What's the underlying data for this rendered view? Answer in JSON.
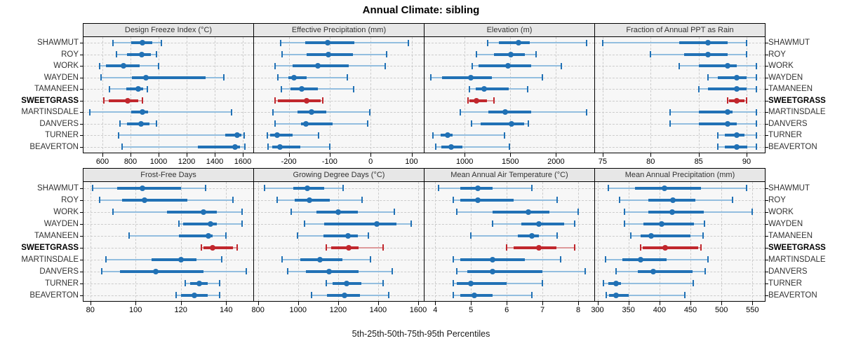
{
  "title": "Annual Climate: sibling",
  "caption": "5th-25th-50th-75th-95th Percentiles",
  "locations": [
    "SHAWMUT",
    "ROY",
    "WORK",
    "WAYDEN",
    "TAMANEEN",
    "SWEETGRASS",
    "MARTINSDALE",
    "DANVERS",
    "TURNER",
    "BEAVERTON"
  ],
  "highlight_location": "SWEETGRASS",
  "colors": {
    "series": "#2171B5",
    "series_light": "#93BEDF",
    "highlight": "#C1272D",
    "highlight_light": "#DD999B",
    "panel_bg": "#F7F7F7",
    "header_bg": "#E7E7E7",
    "grid": "#CCCCCC",
    "border": "#000000",
    "text": "#1A1A1A"
  },
  "chart_data": {
    "type": "dotplot-percentile-intervals",
    "note": "each series row = [5th, 25th, 50th, 75th, 95th] percentile; dot = 50th, thick bar = 25th-75th, thin whisker with end caps = 5th-95th",
    "percentile_labels": [
      "5th",
      "25th",
      "50th",
      "75th",
      "95th"
    ],
    "grid": true,
    "highlight": "SWEETGRASS",
    "panels": [
      {
        "row": 0,
        "col": 0,
        "title": "Design Freeze Index (°C)",
        "xlim": [
          465,
          1675
        ],
        "ticks": [
          600,
          800,
          1000,
          1200,
          1400,
          1600
        ],
        "series": [
          {
            "name": "SHAWMUT",
            "values": [
              676,
              804,
              883,
              954,
              1021
            ]
          },
          {
            "name": "ROY",
            "values": [
              701,
              777,
              878,
              945,
              984
            ]
          },
          {
            "name": "WORK",
            "values": [
              582,
              627,
              750,
              865,
              998
            ]
          },
          {
            "name": "WAYDEN",
            "values": [
              591,
              812,
              910,
              1334,
              1467
            ]
          },
          {
            "name": "TAMANEEN",
            "values": [
              650,
              768,
              853,
              892,
              919
            ]
          },
          {
            "name": "SWEETGRASS",
            "values": [
              609,
              644,
              782,
              857,
              887
            ]
          },
          {
            "name": "MARTINSDALE",
            "values": [
              508,
              804,
              883,
              927,
              1520
            ]
          },
          {
            "name": "DANVERS",
            "values": [
              724,
              777,
              874,
              936,
              986
            ]
          },
          {
            "name": "TURNER",
            "values": [
              715,
              1476,
              1561,
              1591,
              1612
            ]
          },
          {
            "name": "BEAVERTON",
            "values": [
              738,
              1281,
              1543,
              1582,
              1614
            ]
          }
        ]
      },
      {
        "row": 0,
        "col": 1,
        "title": "Effective Precipitation (mm)",
        "xlim": [
          -285,
          130
        ],
        "ticks": [
          -200,
          -100,
          0,
          100
        ],
        "series": [
          {
            "name": "SHAWMUT",
            "values": [
              -220,
              -160,
              -105,
              -40,
              92
            ]
          },
          {
            "name": "ROY",
            "values": [
              -216,
              -157,
              -103,
              -43,
              39
            ]
          },
          {
            "name": "WORK",
            "values": [
              -234,
              -190,
              -129,
              -54,
              35
            ]
          },
          {
            "name": "WAYDEN",
            "values": [
              -226,
              -201,
              -187,
              -157,
              -57
            ]
          },
          {
            "name": "TAMANEEN",
            "values": [
              -219,
              -196,
              -169,
              -129,
              -41
            ]
          },
          {
            "name": "SWEETGRASS",
            "values": [
              -234,
              -226,
              -156,
              -122,
              -117
            ]
          },
          {
            "name": "MARTINSDALE",
            "values": [
              -238,
              -179,
              -144,
              -109,
              -2
            ]
          },
          {
            "name": "DANVERS",
            "values": [
              -233,
              -171,
              -159,
              -93,
              -7
            ]
          },
          {
            "name": "TURNER",
            "values": [
              -253,
              -246,
              -228,
              -190,
              -128
            ]
          },
          {
            "name": "BEAVERTON",
            "values": [
              -251,
              -240,
              -222,
              -171,
              -100
            ]
          }
        ]
      },
      {
        "row": 0,
        "col": 2,
        "title": "Elevation (m)",
        "xlim": [
          560,
          2420
        ],
        "ticks": [
          1000,
          1500,
          2000
        ],
        "series": [
          {
            "name": "SHAWMUT",
            "values": [
              1251,
              1378,
              1589,
              1716,
              2332
            ]
          },
          {
            "name": "ROY",
            "values": [
              1130,
              1324,
              1508,
              1662,
              1778
            ]
          },
          {
            "name": "WORK",
            "values": [
              1086,
              1149,
              1473,
              1730,
              2062
            ]
          },
          {
            "name": "WAYDEN",
            "values": [
              627,
              748,
              1068,
              1297,
              1850
            ]
          },
          {
            "name": "TAMANEEN",
            "values": [
              1049,
              1122,
              1211,
              1486,
              1689
            ]
          },
          {
            "name": "SWEETGRASS",
            "values": [
              1035,
              1049,
              1127,
              1243,
              1324
            ]
          },
          {
            "name": "MARTINSDALE",
            "values": [
              954,
              1257,
              1446,
              1730,
              2332
            ]
          },
          {
            "name": "DANVERS",
            "values": [
              1076,
              1176,
              1515,
              1649,
              1694
            ]
          },
          {
            "name": "TURNER",
            "values": [
              654,
              737,
              816,
              864,
              1432
            ]
          },
          {
            "name": "BEAVERTON",
            "values": [
              684,
              743,
              851,
              973,
              1491
            ]
          }
        ]
      },
      {
        "row": 0,
        "col": 3,
        "title": "Fraction of Annual PPT as Rain",
        "xlim": [
          74.2,
          91.9
        ],
        "ticks": [
          75,
          80,
          85,
          90
        ],
        "series": [
          {
            "name": "SHAWMUT",
            "values": [
              75,
              83,
              86,
              88,
              90
            ]
          },
          {
            "name": "ROY",
            "values": [
              80,
              83.5,
              86,
              88,
              90
            ]
          },
          {
            "name": "WORK",
            "values": [
              83,
              85,
              88,
              89,
              91
            ]
          },
          {
            "name": "WAYDEN",
            "values": [
              86,
              87,
              89,
              90,
              91
            ]
          },
          {
            "name": "TAMANEEN",
            "values": [
              85,
              86,
              89,
              90,
              91
            ]
          },
          {
            "name": "SWEETGRASS",
            "values": [
              88,
              88.2,
              89,
              89.8,
              90
            ]
          },
          {
            "name": "MARTINSDALE",
            "values": [
              82,
              85,
              88,
              88.5,
              91
            ]
          },
          {
            "name": "DANVERS",
            "values": [
              82,
              85,
              88,
              89,
              91
            ]
          },
          {
            "name": "TURNER",
            "values": [
              87,
              87.7,
              89,
              89.8,
              91
            ]
          },
          {
            "name": "BEAVERTON",
            "values": [
              87,
              87.7,
              89,
              90.1,
              91
            ]
          }
        ]
      },
      {
        "row": 1,
        "col": 0,
        "title": "Frost-Free Days",
        "xlim": [
          77,
          152
        ],
        "ticks": [
          80,
          100,
          120,
          140
        ],
        "series": [
          {
            "name": "SHAWMUT",
            "values": [
              81,
              92,
              103,
              120,
              131
            ]
          },
          {
            "name": "ROY",
            "values": [
              84,
              94,
              104,
              123,
              143
            ]
          },
          {
            "name": "WORK",
            "values": [
              90,
              114,
              130,
              136,
              147
            ]
          },
          {
            "name": "WAYDEN",
            "values": [
              119,
              121,
              133,
              136,
              147
            ]
          },
          {
            "name": "TAMANEEN",
            "values": [
              97,
              119,
              132,
              134,
              140
            ]
          },
          {
            "name": "SWEETGRASS",
            "values": [
              129,
              130,
              134,
              143,
              145
            ]
          },
          {
            "name": "MARTINSDALE",
            "values": [
              87,
              107,
              120,
              127,
              138
            ]
          },
          {
            "name": "DANVERS",
            "values": [
              85,
              93,
              109,
              130,
              149
            ]
          },
          {
            "name": "TURNER",
            "values": [
              122,
              124,
              128,
              132,
              137
            ]
          },
          {
            "name": "BEAVERTON",
            "values": [
              118,
              120,
              126,
              132,
              137
            ]
          }
        ]
      },
      {
        "row": 1,
        "col": 1,
        "title": "Growing Degree Days (°C)",
        "xlim": [
          780,
          1628
        ],
        "ticks": [
          800,
          1000,
          1200,
          1400,
          1600
        ],
        "series": [
          {
            "name": "SHAWMUT",
            "values": [
              832,
              976,
              1047,
              1131,
              1225
            ]
          },
          {
            "name": "ROY",
            "values": [
              895,
              982,
              1056,
              1160,
              1321
            ]
          },
          {
            "name": "WORK",
            "values": [
              967,
              1091,
              1200,
              1298,
              1482
            ]
          },
          {
            "name": "WAYDEN",
            "values": [
              1033,
              1131,
              1392,
              1493,
              1564
            ]
          },
          {
            "name": "TAMANEEN",
            "values": [
              997,
              1125,
              1250,
              1298,
              1352
            ]
          },
          {
            "name": "SWEETGRASS",
            "values": [
              1139,
              1166,
              1252,
              1303,
              1424
            ]
          },
          {
            "name": "MARTINSDALE",
            "values": [
              921,
              1010,
              1108,
              1223,
              1363
            ]
          },
          {
            "name": "DANVERS",
            "values": [
              947,
              1039,
              1156,
              1303,
              1470
            ]
          },
          {
            "name": "TURNER",
            "values": [
              1139,
              1171,
              1244,
              1315,
              1426
            ]
          },
          {
            "name": "BEAVERTON",
            "values": [
              1066,
              1143,
              1232,
              1309,
              1453
            ]
          }
        ]
      },
      {
        "row": 1,
        "col": 2,
        "title": "Mean Annual Air Temperature (°C)",
        "xlim": [
          3.7,
          8.45
        ],
        "ticks": [
          4,
          5,
          6,
          7,
          8
        ],
        "series": [
          {
            "name": "SHAWMUT",
            "values": [
              4.1,
              4.7,
              5.2,
              5.6,
              6.7
            ]
          },
          {
            "name": "ROY",
            "values": [
              4.5,
              4.7,
              5.2,
              6.2,
              7.4
            ]
          },
          {
            "name": "WORK",
            "values": [
              4.6,
              5.6,
              6.6,
              7.2,
              8.0
            ]
          },
          {
            "name": "WAYDEN",
            "values": [
              5.6,
              6.4,
              6.9,
              7.6,
              7.9
            ]
          },
          {
            "name": "TAMANEEN",
            "values": [
              5.0,
              6.3,
              6.7,
              6.9,
              7.4
            ]
          },
          {
            "name": "SWEETGRASS",
            "values": [
              6.0,
              6.2,
              6.9,
              7.4,
              7.9
            ]
          },
          {
            "name": "MARTINSDALE",
            "values": [
              4.5,
              4.7,
              5.6,
              6.5,
              7.5
            ]
          },
          {
            "name": "DANVERS",
            "values": [
              4.6,
              4.9,
              5.6,
              7.0,
              8.2
            ]
          },
          {
            "name": "TURNER",
            "values": [
              4.5,
              4.6,
              5.0,
              6.0,
              7.0
            ]
          },
          {
            "name": "BEAVERTON",
            "values": [
              4.5,
              4.7,
              5.1,
              5.6,
              6.7
            ]
          }
        ]
      },
      {
        "row": 1,
        "col": 3,
        "title": "Mean Annual Precipitation (mm)",
        "xlim": [
          296,
          570
        ],
        "ticks": [
          300,
          350,
          400,
          450,
          500,
          550
        ],
        "series": [
          {
            "name": "SHAWMUT",
            "values": [
              318,
              360,
              408,
              467,
              541
            ]
          },
          {
            "name": "ROY",
            "values": [
              336,
              382,
              422,
              458,
              518
            ]
          },
          {
            "name": "WORK",
            "values": [
              344,
              382,
              421,
              471,
              549
            ]
          },
          {
            "name": "WAYDEN",
            "values": [
              344,
              374,
              403,
              456,
              473
            ]
          },
          {
            "name": "TAMANEEN",
            "values": [
              354,
              370,
              386,
              450,
              470
            ]
          },
          {
            "name": "SWEETGRASS",
            "values": [
              370,
              373,
              409,
              462,
              467
            ]
          },
          {
            "name": "MARTINSDALE",
            "values": [
              313,
              340,
              370,
              411,
              478
            ]
          },
          {
            "name": "DANVERS",
            "values": [
              330,
              365,
              390,
              454,
              474
            ]
          },
          {
            "name": "TURNER",
            "values": [
              310,
              317,
              330,
              338,
              455
            ]
          },
          {
            "name": "BEAVERTON",
            "values": [
              314,
              319,
              330,
              350,
              441
            ]
          }
        ]
      }
    ]
  }
}
